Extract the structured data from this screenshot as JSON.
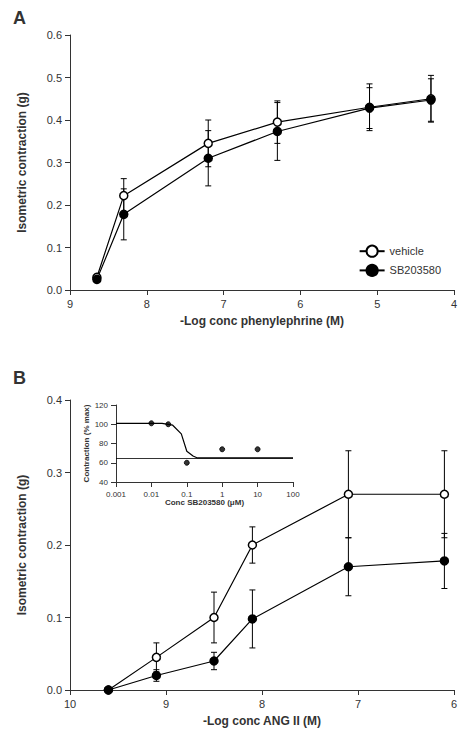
{
  "chart_data": [
    {
      "type": "line",
      "title": "A",
      "xlabel": "-Log conc phenylephrine (M)",
      "ylabel": "Isometric contraction (g)",
      "xlim": [
        9,
        4
      ],
      "xticks": [
        9,
        8,
        7,
        6,
        5,
        4
      ],
      "ylim": [
        0,
        0.6
      ],
      "yticks": [
        {
          "value": 0,
          "label": "0.0"
        },
        0.1,
        0.2,
        0.3,
        0.4,
        0.5,
        0.6
      ],
      "grid": false,
      "legend": "lower right",
      "series": [
        {
          "name": "vehicle",
          "color": "black",
          "marker": "open_circle",
          "x": [
            8.65,
            8.3,
            7.2,
            6.3,
            5.1,
            4.3
          ],
          "values": [
            0.03,
            0.222,
            0.345,
            0.395,
            0.43,
            0.45
          ],
          "errors": [
            0.005,
            0.04,
            0.055,
            0.05,
            0.055,
            0.055
          ]
        },
        {
          "name": "SB203580",
          "color": "black",
          "marker": "circle",
          "x": [
            8.65,
            8.3,
            7.2,
            6.3,
            5.1,
            4.3
          ],
          "values": [
            0.025,
            0.178,
            0.31,
            0.373,
            0.428,
            0.447
          ],
          "errors": [
            0.005,
            0.06,
            0.065,
            0.068,
            0.048,
            0.05
          ]
        }
      ]
    },
    {
      "type": "line",
      "title": "B",
      "xlabel": "-Log conc ANG II (M)",
      "ylabel": "Isometric contraction (g)",
      "xlim": [
        10,
        6
      ],
      "xticks": [
        10,
        9,
        8,
        7,
        6
      ],
      "ylim": [
        0,
        0.4
      ],
      "yticks": [
        {
          "value": 0,
          "label": "0.0"
        },
        0.1,
        0.2,
        0.3,
        0.4
      ],
      "grid": false,
      "series": [
        {
          "name": "vehicle",
          "color": "black",
          "marker": "open_circle",
          "x": [
            9.6,
            9.1,
            8.5,
            8.1,
            7.1,
            6.1
          ],
          "values": [
            0.0,
            0.045,
            0.1,
            0.2,
            0.27,
            0.27
          ],
          "errors": [
            0.0,
            0.02,
            0.035,
            0.025,
            0.06,
            0.06
          ]
        },
        {
          "name": "SB203580",
          "color": "black",
          "marker": "circle",
          "x": [
            9.6,
            9.1,
            8.5,
            8.1,
            7.1,
            6.1
          ],
          "values": [
            0.0,
            0.02,
            0.04,
            0.098,
            0.17,
            0.178
          ],
          "errors": [
            0.0,
            0.008,
            0.012,
            0.04,
            0.04,
            0.038
          ]
        }
      ]
    },
    {
      "type": "line",
      "xlabel": "Conc SB203580 (μM)",
      "ylabel": "Contraction (% max)",
      "log": "x",
      "xlim": [
        0.001,
        100
      ],
      "xticks": [
        0.001,
        0.01,
        0.1,
        1,
        10,
        100
      ],
      "ylim": [
        40,
        120
      ],
      "yticks": [
        40,
        60,
        80,
        100,
        120
      ],
      "grid": false,
      "hline": 65,
      "series": [
        {
          "type": "line",
          "color": "black",
          "x": [
            0.001,
            0.003,
            0.005,
            0.008,
            0.01,
            0.02,
            0.04,
            0.07,
            0.1,
            0.15,
            0.2,
            0.3,
            0.5,
            1.0,
            2.0,
            5.0,
            10.0,
            20.0,
            100.0
          ],
          "values": [
            101,
            101,
            101,
            101,
            101,
            101,
            99,
            90,
            72,
            67,
            65,
            65,
            65,
            65,
            65,
            65,
            65,
            65,
            65
          ]
        },
        {
          "type": "scatter",
          "color": "black",
          "marker": "circle",
          "x": [
            0.01,
            0.03,
            0.1,
            1.0,
            10.0
          ],
          "values": [
            101,
            100,
            60,
            74,
            74
          ]
        }
      ]
    }
  ]
}
